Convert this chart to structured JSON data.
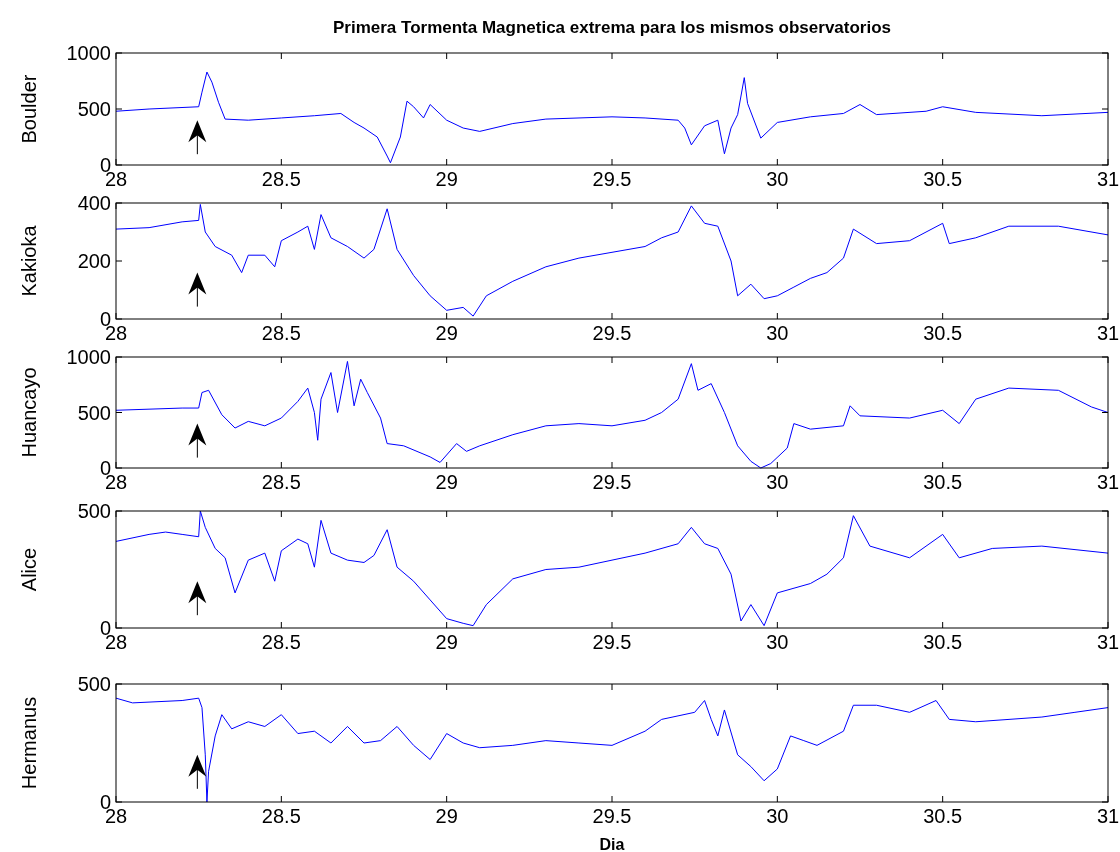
{
  "chart_data": [
    {
      "type": "line",
      "title": "Primera Tormenta Magnetica extrema para los mismos observatorios",
      "ylabel": "Boulder",
      "xlim": [
        28,
        31
      ],
      "xticks": [
        28,
        28.5,
        29,
        29.5,
        30,
        30.5,
        31
      ],
      "ylim": [
        0,
        1000
      ],
      "yticks": [
        0,
        500,
        1000
      ],
      "series": [
        {
          "color": "#0000ff",
          "x": [
            28.0,
            28.1,
            28.25,
            28.26,
            28.275,
            28.29,
            28.31,
            28.33,
            28.4,
            28.5,
            28.6,
            28.68,
            28.72,
            28.75,
            28.79,
            28.82,
            28.83,
            28.86,
            28.88,
            28.9,
            28.93,
            28.95,
            29.0,
            29.05,
            29.1,
            29.2,
            29.3,
            29.5,
            29.6,
            29.7,
            29.72,
            29.74,
            29.78,
            29.82,
            29.84,
            29.86,
            29.88,
            29.9,
            29.91,
            29.95,
            30.0,
            30.1,
            30.2,
            30.25,
            30.3,
            30.45,
            30.5,
            30.6,
            30.8,
            31.0
          ],
          "values": [
            480,
            500,
            520,
            650,
            830,
            740,
            560,
            410,
            400,
            420,
            440,
            460,
            380,
            330,
            250,
            80,
            20,
            250,
            570,
            520,
            420,
            540,
            400,
            330,
            300,
            370,
            410,
            430,
            420,
            400,
            330,
            180,
            350,
            400,
            100,
            330,
            450,
            780,
            550,
            240,
            380,
            430,
            460,
            540,
            450,
            480,
            520,
            470,
            440,
            470
          ]
        }
      ]
    },
    {
      "type": "line",
      "ylabel": "Kakioka",
      "xlim": [
        28,
        31
      ],
      "xticks": [
        28,
        28.5,
        29,
        29.5,
        30,
        30.5,
        31
      ],
      "ylim": [
        0,
        400
      ],
      "yticks": [
        0,
        200,
        400
      ],
      "series": [
        {
          "color": "#0000ff",
          "x": [
            28.0,
            28.1,
            28.2,
            28.25,
            28.255,
            28.27,
            28.3,
            28.35,
            28.38,
            28.4,
            28.45,
            28.48,
            28.5,
            28.55,
            28.58,
            28.6,
            28.62,
            28.65,
            28.7,
            28.75,
            28.78,
            28.82,
            28.85,
            28.9,
            28.95,
            29.0,
            29.05,
            29.08,
            29.12,
            29.2,
            29.3,
            29.4,
            29.5,
            29.6,
            29.65,
            29.7,
            29.74,
            29.78,
            29.82,
            29.86,
            29.88,
            29.92,
            29.96,
            30.0,
            30.05,
            30.1,
            30.15,
            30.2,
            30.23,
            30.3,
            30.4,
            30.5,
            30.52,
            30.6,
            30.7,
            30.85,
            31.0
          ],
          "values": [
            310,
            315,
            335,
            340,
            395,
            300,
            250,
            220,
            160,
            220,
            220,
            180,
            270,
            300,
            320,
            240,
            360,
            280,
            250,
            210,
            240,
            380,
            240,
            150,
            80,
            30,
            40,
            10,
            80,
            130,
            180,
            210,
            230,
            250,
            280,
            300,
            390,
            330,
            320,
            200,
            80,
            120,
            70,
            80,
            110,
            140,
            160,
            210,
            310,
            260,
            270,
            330,
            260,
            280,
            320,
            320,
            290
          ]
        }
      ]
    },
    {
      "type": "line",
      "ylabel": "Huancayo",
      "xlim": [
        28,
        31
      ],
      "xticks": [
        28,
        28.5,
        29,
        29.5,
        30,
        30.5,
        31
      ],
      "ylim": [
        0,
        1000
      ],
      "yticks": [
        0,
        500,
        1000
      ],
      "series": [
        {
          "color": "#0000ff",
          "x": [
            28.0,
            28.2,
            28.25,
            28.26,
            28.28,
            28.32,
            28.36,
            28.4,
            28.45,
            28.5,
            28.55,
            28.58,
            28.6,
            28.61,
            28.62,
            28.65,
            28.67,
            28.7,
            28.72,
            28.74,
            28.76,
            28.8,
            28.82,
            28.87,
            28.95,
            28.98,
            29.03,
            29.06,
            29.1,
            29.2,
            29.3,
            29.4,
            29.5,
            29.6,
            29.65,
            29.7,
            29.74,
            29.76,
            29.8,
            29.84,
            29.88,
            29.92,
            29.95,
            29.98,
            30.03,
            30.05,
            30.1,
            30.2,
            30.22,
            30.25,
            30.4,
            30.5,
            30.55,
            30.6,
            30.7,
            30.85,
            30.95,
            31.0
          ],
          "values": [
            520,
            540,
            540,
            680,
            700,
            480,
            360,
            420,
            380,
            450,
            600,
            720,
            500,
            250,
            620,
            860,
            500,
            960,
            560,
            800,
            680,
            450,
            220,
            200,
            100,
            50,
            220,
            150,
            200,
            300,
            380,
            400,
            380,
            430,
            500,
            620,
            940,
            700,
            760,
            500,
            200,
            60,
            0,
            40,
            180,
            400,
            350,
            380,
            560,
            470,
            450,
            520,
            400,
            620,
            720,
            700,
            550,
            500
          ]
        }
      ]
    },
    {
      "type": "line",
      "ylabel": "Alice",
      "xlim": [
        28,
        31
      ],
      "xticks": [
        28,
        28.5,
        29,
        29.5,
        30,
        30.5,
        31
      ],
      "ylim": [
        0,
        500
      ],
      "yticks": [
        0,
        500
      ],
      "series": [
        {
          "color": "#0000ff",
          "x": [
            28.0,
            28.1,
            28.15,
            28.2,
            28.25,
            28.255,
            28.27,
            28.3,
            28.33,
            28.36,
            28.4,
            28.45,
            28.48,
            28.5,
            28.55,
            28.58,
            28.6,
            28.62,
            28.65,
            28.7,
            28.75,
            28.78,
            28.82,
            28.85,
            28.9,
            28.95,
            29.0,
            29.05,
            29.08,
            29.12,
            29.2,
            29.3,
            29.4,
            29.5,
            29.6,
            29.7,
            29.74,
            29.78,
            29.82,
            29.86,
            29.89,
            29.92,
            29.96,
            30.0,
            30.1,
            30.15,
            30.2,
            30.23,
            30.28,
            30.4,
            30.5,
            30.55,
            30.65,
            30.8,
            31.0
          ],
          "values": [
            370,
            400,
            410,
            400,
            390,
            500,
            430,
            340,
            300,
            150,
            290,
            320,
            200,
            330,
            380,
            360,
            260,
            460,
            320,
            290,
            280,
            310,
            420,
            260,
            200,
            120,
            40,
            20,
            10,
            100,
            210,
            250,
            260,
            290,
            320,
            360,
            430,
            360,
            340,
            230,
            30,
            100,
            10,
            150,
            190,
            230,
            300,
            480,
            350,
            300,
            400,
            300,
            340,
            350,
            320
          ]
        }
      ]
    },
    {
      "type": "line",
      "ylabel": "Hermanus",
      "xlabel": "Dia",
      "xlim": [
        28,
        31
      ],
      "xticks": [
        28,
        28.5,
        29,
        29.5,
        30,
        30.5,
        31
      ],
      "ylim": [
        0,
        500
      ],
      "yticks": [
        0,
        500
      ],
      "series": [
        {
          "color": "#0000ff",
          "x": [
            28.0,
            28.05,
            28.2,
            28.25,
            28.26,
            28.27,
            28.275,
            28.28,
            28.3,
            28.32,
            28.35,
            28.4,
            28.45,
            28.5,
            28.55,
            28.6,
            28.65,
            28.7,
            28.75,
            28.8,
            28.85,
            28.9,
            28.95,
            29.0,
            29.05,
            29.1,
            29.2,
            29.3,
            29.4,
            29.5,
            29.6,
            29.65,
            29.75,
            29.78,
            29.8,
            29.82,
            29.84,
            29.88,
            29.92,
            29.96,
            30.0,
            30.04,
            30.08,
            30.12,
            30.2,
            30.23,
            30.3,
            30.4,
            30.48,
            30.52,
            30.6,
            30.8,
            30.9,
            31.0
          ],
          "values": [
            440,
            420,
            430,
            440,
            400,
            200,
            0,
            130,
            280,
            370,
            310,
            340,
            320,
            370,
            290,
            300,
            250,
            320,
            250,
            260,
            320,
            240,
            180,
            290,
            250,
            230,
            240,
            260,
            250,
            240,
            300,
            350,
            380,
            430,
            350,
            280,
            390,
            200,
            150,
            90,
            140,
            280,
            260,
            240,
            300,
            410,
            410,
            380,
            430,
            350,
            340,
            360,
            380,
            400
          ]
        }
      ]
    }
  ]
}
